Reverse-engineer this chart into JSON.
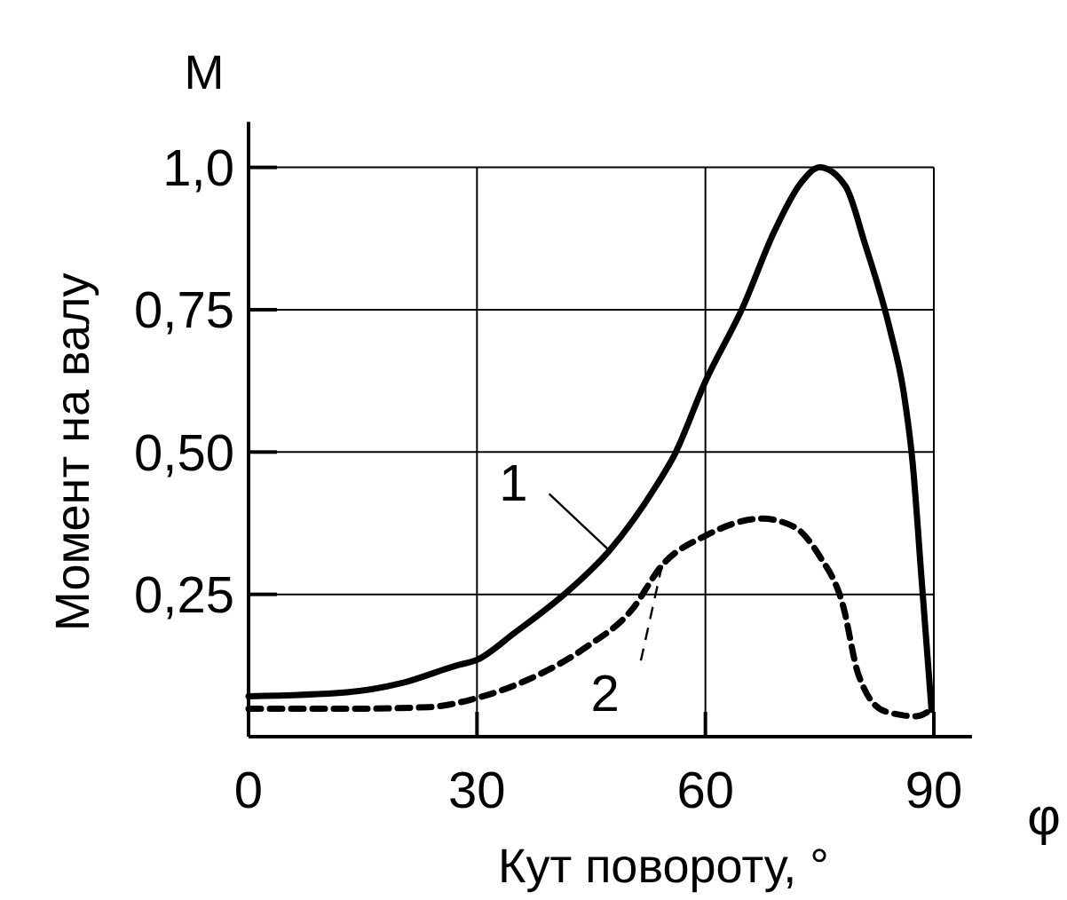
{
  "chart_data": {
    "type": "line",
    "xlabel": "Кут повороту, °",
    "ylabel": "Момент на валу",
    "annotations": [
      "M",
      "φ"
    ],
    "xlim": [
      0,
      95
    ],
    "xticks": [
      0,
      30,
      60,
      90
    ],
    "ylim": [
      0,
      1.08
    ],
    "yticks": [
      {
        "value": 0.25,
        "label": "0,25"
      },
      {
        "value": 0.5,
        "label": "0,50"
      },
      {
        "value": 0.75,
        "label": "0,75"
      },
      {
        "value": 1.0,
        "label": "1,0"
      }
    ],
    "grid": true,
    "marker": "none",
    "series": [
      {
        "name": "1",
        "color": "#000000",
        "line_style": "solid",
        "x": [
          0,
          12.9,
          20.1,
          27.3,
          30,
          34.9,
          41.9,
          47.4,
          53.6,
          55.9,
          60,
          64.9,
          69.1,
          72.5,
          75,
          78.4,
          80.9,
          84.3,
          86,
          87.2,
          88.4,
          89.7
        ],
        "values": [
          0.071,
          0.078,
          0.094,
          0.125,
          0.135,
          0.182,
          0.255,
          0.327,
          0.442,
          0.494,
          0.624,
          0.754,
          0.889,
          0.972,
          1.0,
          0.967,
          0.868,
          0.712,
          0.608,
          0.483,
          0.275,
          0.047
        ]
      },
      {
        "name": "2",
        "color": "#000000",
        "line_style": "dashed",
        "x": [
          0,
          12.9,
          23.7,
          30,
          36.5,
          44.2,
          50.4,
          54.3,
          60,
          67.4,
          71.6,
          75,
          78,
          80.1,
          83.5,
          87.7,
          89.6
        ],
        "values": [
          0.049,
          0.049,
          0.052,
          0.068,
          0.099,
          0.156,
          0.224,
          0.301,
          0.353,
          0.383,
          0.369,
          0.317,
          0.234,
          0.109,
          0.045,
          0.036,
          0.047
        ]
      }
    ]
  }
}
